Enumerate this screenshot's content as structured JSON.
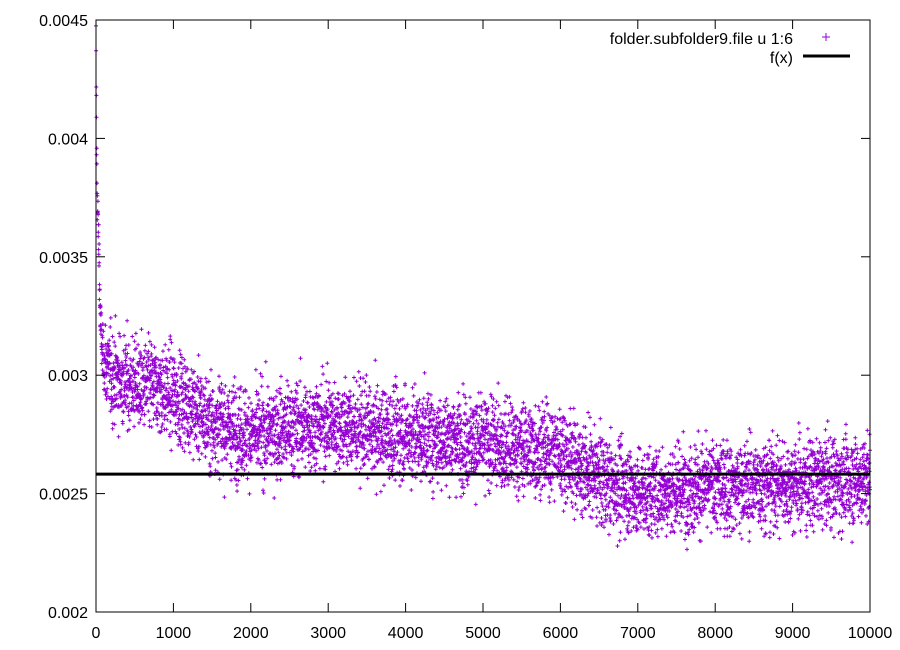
{
  "chart_data": {
    "type": "scatter",
    "title": "",
    "xlabel": "",
    "ylabel": "",
    "xlim": [
      0,
      10000
    ],
    "ylim": [
      0.002,
      0.0045
    ],
    "x_ticks": [
      "0",
      "1000",
      "2000",
      "3000",
      "4000",
      "5000",
      "6000",
      "7000",
      "8000",
      "9000",
      "10000"
    ],
    "y_ticks": [
      "0.002",
      "0.0025",
      "0.003",
      "0.0035",
      "0.004",
      "0.0045"
    ],
    "grid": false,
    "legend_position": "top-right",
    "series": [
      {
        "name": "folder.subfolder9.file u 1:6",
        "kind": "points",
        "marker": "plus",
        "color": "#9400d3",
        "x": [
          0,
          10,
          20,
          30,
          40,
          50,
          60,
          80,
          100,
          150,
          200,
          300,
          400,
          500,
          600,
          700,
          800,
          900,
          1000,
          1100,
          1200,
          1300,
          1400,
          1500,
          1700,
          2000,
          2200,
          2500,
          2800,
          3000,
          3300,
          3600,
          4000,
          4300,
          4600,
          5000,
          5300,
          5600,
          6000,
          6300,
          6600,
          7000,
          7300,
          7600,
          8000,
          8300,
          8600,
          9000,
          9300,
          9600,
          10000
        ],
        "y": [
          0.0044,
          0.0039,
          0.0037,
          0.0036,
          0.0035,
          0.0033,
          0.0032,
          0.0031,
          0.00305,
          0.00303,
          0.003,
          0.00298,
          0.00297,
          0.00296,
          0.00295,
          0.00295,
          0.00294,
          0.00293,
          0.00292,
          0.0029,
          0.00288,
          0.00285,
          0.00282,
          0.0028,
          0.00278,
          0.00275,
          0.00276,
          0.00278,
          0.00279,
          0.0028,
          0.00278,
          0.00276,
          0.00275,
          0.00274,
          0.00273,
          0.00272,
          0.0027,
          0.00269,
          0.00268,
          0.0026,
          0.00255,
          0.0025,
          0.00251,
          0.00252,
          0.00253,
          0.00253,
          0.00254,
          0.00254,
          0.00255,
          0.00255,
          0.00256
        ],
        "spread": 0.0002
      },
      {
        "name": "f(x)",
        "kind": "line",
        "color": "#000000",
        "x": [
          0,
          10000
        ],
        "y": [
          0.002582,
          0.002582
        ]
      }
    ]
  }
}
